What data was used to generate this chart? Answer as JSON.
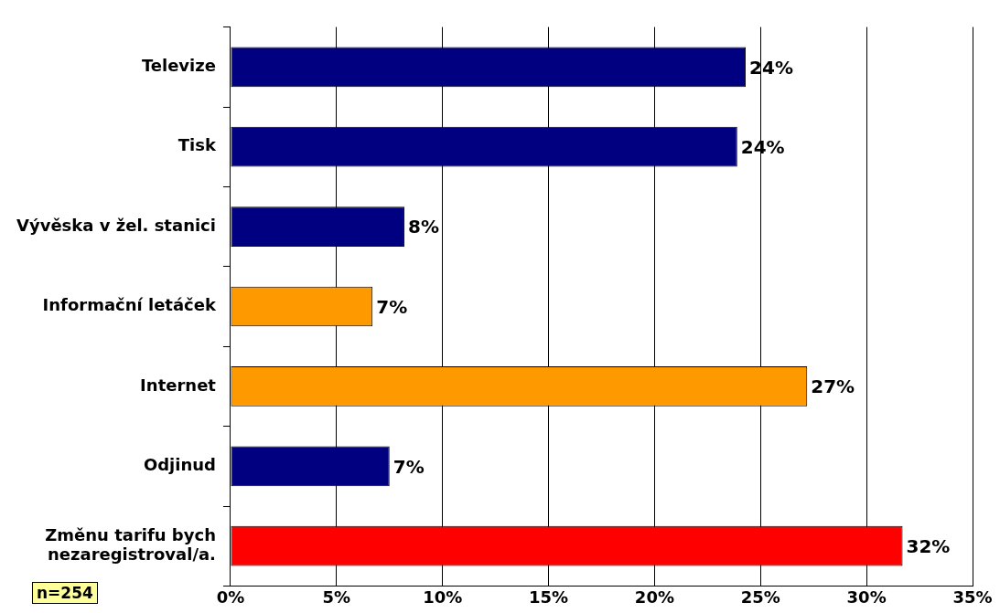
{
  "chart_data": {
    "type": "bar",
    "orientation": "horizontal",
    "categories": [
      "Televize",
      "Tisk",
      "Vývěska v žel. stanici",
      "Informační letáček",
      "Internet",
      "Odjinud",
      "Změnu tarifu bych nezaregistroval/a."
    ],
    "values": [
      24.3,
      23.9,
      8.2,
      6.7,
      27.2,
      7.5,
      31.7
    ],
    "colors": [
      "#000080",
      "#000080",
      "#000080",
      "#ff9900",
      "#ff9900",
      "#000080",
      "#ff0000"
    ],
    "value_labels": [
      "24%",
      "24%",
      "8%",
      "7%",
      "27%",
      "7%",
      "32%"
    ],
    "xlim": [
      0,
      35
    ],
    "xticks": [
      {
        "value": 0,
        "label": "0%"
      },
      {
        "value": 5,
        "label": "5%"
      },
      {
        "value": 10,
        "label": "10%"
      },
      {
        "value": 15,
        "label": "15%"
      },
      {
        "value": 20,
        "label": "20%"
      },
      {
        "value": 25,
        "label": "25%"
      },
      {
        "value": 30,
        "label": "30%"
      },
      {
        "value": 35,
        "label": "35%"
      }
    ],
    "grid": "x",
    "annotations": [
      "n=254"
    ]
  }
}
